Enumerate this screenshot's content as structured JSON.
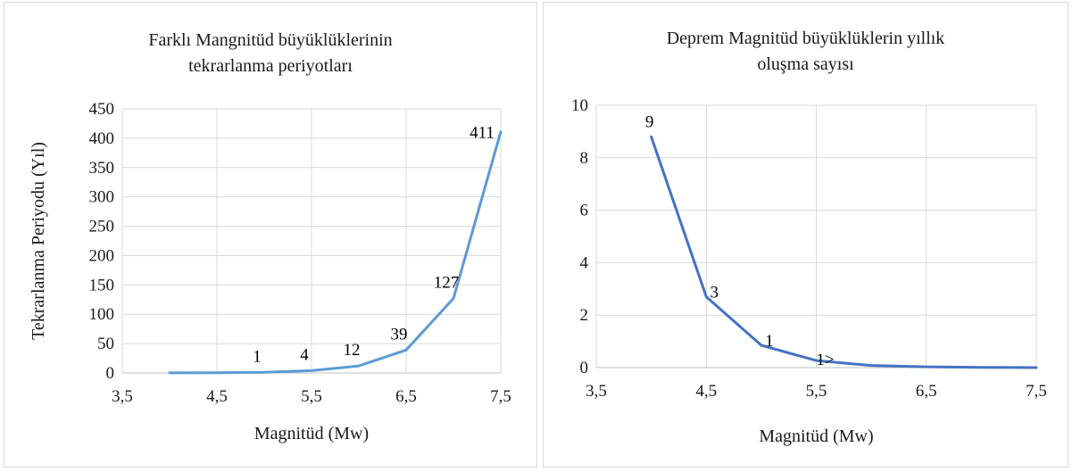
{
  "chart_data": [
    {
      "type": "line",
      "title_lines": [
        "Farklı Mangnitüd büyüklüklerinin",
        "tekrarlanma periyotları"
      ],
      "xlabel": "Magnitüd (Mw)",
      "ylabel": "Tekrarlanma Periyodu (Yıl)",
      "xlim": [
        3.5,
        7.5
      ],
      "ylim": [
        0,
        450
      ],
      "x_ticks": [
        "3,5",
        "4,5",
        "5,5",
        "6,5",
        "7,5"
      ],
      "y_ticks": [
        "0",
        "50",
        "100",
        "150",
        "200",
        "250",
        "300",
        "350",
        "400",
        "450"
      ],
      "grid": true,
      "line_color": "#5b9bd5",
      "series": [
        {
          "x": [
            4.0,
            4.5,
            5.0,
            5.5,
            6.0,
            6.5,
            7.0,
            7.5
          ],
          "y": [
            0.1,
            0.4,
            1,
            4,
            12,
            39,
            127,
            411
          ]
        }
      ],
      "data_labels": [
        {
          "text": "1",
          "x": 5.0,
          "y": 1
        },
        {
          "text": "4",
          "x": 5.5,
          "y": 4
        },
        {
          "text": "12",
          "x": 6.0,
          "y": 12
        },
        {
          "text": "39",
          "x": 6.5,
          "y": 39
        },
        {
          "text": "127",
          "x": 7.0,
          "y": 127
        },
        {
          "text": "411",
          "x": 7.5,
          "y": 411
        }
      ]
    },
    {
      "type": "line",
      "title_lines": [
        "Deprem Magnitüd büyüklüklerin yıllık",
        "oluşma sayısı"
      ],
      "xlabel": "Magnitüd (Mw)",
      "ylabel": "",
      "xlim": [
        3.5,
        7.5
      ],
      "ylim": [
        0,
        10
      ],
      "x_ticks": [
        "3,5",
        "4,5",
        "5,5",
        "6,5",
        "7,5"
      ],
      "y_ticks": [
        "0",
        "2",
        "4",
        "6",
        "8",
        "10"
      ],
      "grid": true,
      "line_color": "#4472c4",
      "series": [
        {
          "x": [
            4.0,
            4.5,
            5.0,
            5.5,
            6.0,
            6.5,
            7.0,
            7.5
          ],
          "y": [
            8.8,
            2.7,
            0.85,
            0.27,
            0.08,
            0.03,
            0.01,
            0.0
          ]
        }
      ],
      "data_labels": [
        {
          "text": "9",
          "x": 4.0,
          "y": 8.8
        },
        {
          "text": "3",
          "x": 4.5,
          "y": 2.7
        },
        {
          "text": "1",
          "x": 5.0,
          "y": 0.85
        },
        {
          "text": "1>",
          "x": 5.5,
          "y": 0.27
        }
      ]
    }
  ]
}
